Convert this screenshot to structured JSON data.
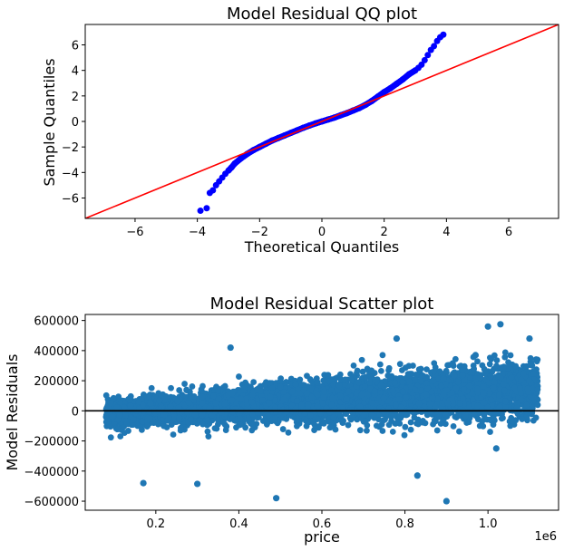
{
  "chart_data": [
    {
      "type": "scatter",
      "title": "Model Residual QQ plot",
      "xlabel": "Theoretical Quantiles",
      "ylabel": "Sample Quantiles",
      "xlim": [
        -7.6,
        7.6
      ],
      "ylim": [
        -7.6,
        7.6
      ],
      "xticks": [
        -6,
        -4,
        -2,
        0,
        2,
        4,
        6
      ],
      "yticks": [
        -6,
        -4,
        -2,
        0,
        2,
        4,
        6
      ],
      "xtick_labels": [
        "−6",
        "−4",
        "−2",
        "0",
        "2",
        "4",
        "6"
      ],
      "ytick_labels": [
        "−6",
        "−4",
        "−2",
        "0",
        "2",
        "4",
        "6"
      ],
      "grid": false,
      "series": [
        {
          "type": "scatter",
          "color": "#0000ff",
          "x": [
            -3.9,
            -3.7,
            -3.6,
            -3.5,
            -3.4,
            -3.3,
            -3.2,
            -3.1,
            -3.0,
            -2.9,
            -2.8,
            -2.6,
            -2.4,
            -2.2,
            -2.0,
            -1.8,
            -1.6,
            -1.4,
            -1.2,
            -1.0,
            -0.8,
            -0.6,
            -0.4,
            -0.2,
            0.0,
            0.2,
            0.4,
            0.6,
            0.8,
            1.0,
            1.2,
            1.4,
            1.6,
            1.8,
            2.0,
            2.2,
            2.4,
            2.6,
            2.8,
            3.0,
            3.1,
            3.2,
            3.3,
            3.4,
            3.5,
            3.6,
            3.7,
            3.8,
            3.9
          ],
          "y": [
            -7.0,
            -6.8,
            -5.6,
            -5.4,
            -5.0,
            -4.7,
            -4.4,
            -4.1,
            -3.85,
            -3.6,
            -3.3,
            -2.9,
            -2.55,
            -2.25,
            -2.0,
            -1.75,
            -1.5,
            -1.3,
            -1.1,
            -0.9,
            -0.7,
            -0.5,
            -0.32,
            -0.15,
            0.0,
            0.15,
            0.3,
            0.48,
            0.65,
            0.85,
            1.05,
            1.3,
            1.6,
            1.95,
            2.3,
            2.6,
            2.95,
            3.3,
            3.7,
            4.0,
            4.2,
            4.45,
            4.8,
            5.2,
            5.6,
            5.9,
            6.3,
            6.6,
            6.8
          ]
        },
        {
          "type": "line",
          "color": "#ff0000",
          "x": [
            -7.6,
            7.6
          ],
          "y": [
            -7.6,
            7.6
          ]
        }
      ]
    },
    {
      "type": "scatter",
      "title": "Model Residual Scatter plot",
      "xlabel": "price",
      "ylabel": "Model Residuals",
      "x_offset_label": "1e6",
      "xlim": [
        0.03,
        1.17
      ],
      "ylim": [
        -660000,
        640000
      ],
      "xticks": [
        0.2,
        0.4,
        0.6,
        0.8,
        1.0
      ],
      "yticks": [
        -600000,
        -400000,
        -200000,
        0,
        200000,
        400000,
        600000
      ],
      "xtick_labels": [
        "0.2",
        "0.4",
        "0.6",
        "0.8",
        "1.0"
      ],
      "ytick_labels": [
        "−600000",
        "−400000",
        "−200000",
        "0",
        "200000",
        "400000",
        "600000"
      ],
      "grid": false,
      "color": "#1f77b4",
      "zero_line": {
        "y": 0,
        "color": "#000000"
      },
      "notable_points": {
        "x": [
          0.9,
          0.49,
          0.17,
          0.3,
          0.83,
          1.0,
          1.03,
          1.1,
          1.02,
          0.97,
          0.38,
          0.78
        ],
        "y": [
          -600000,
          -580000,
          -480000,
          -485000,
          -430000,
          560000,
          575000,
          480000,
          -250000,
          370000,
          420000,
          480000
        ]
      }
    }
  ]
}
